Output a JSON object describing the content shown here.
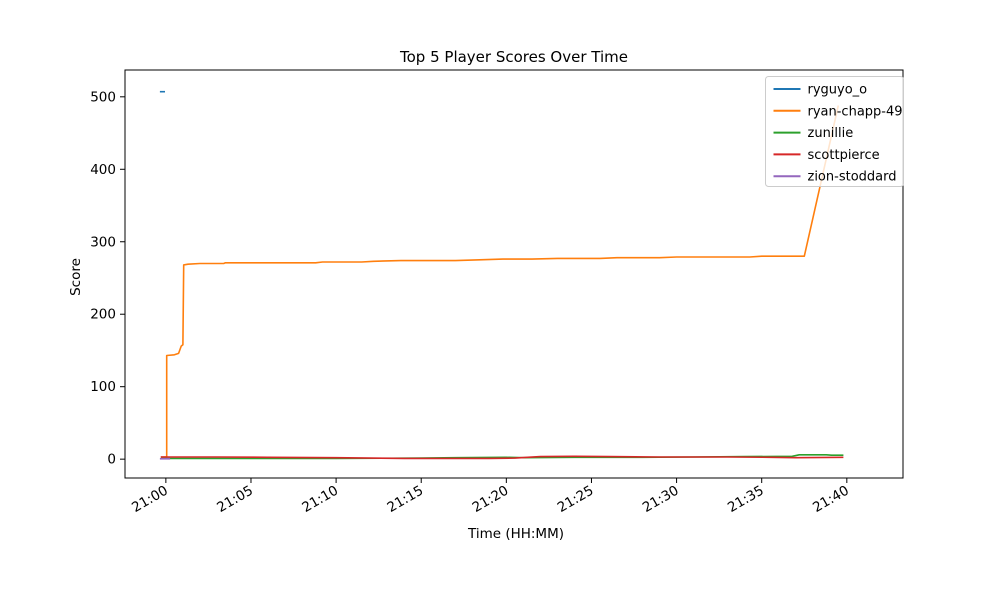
{
  "figure": {
    "background": "#ffffff"
  },
  "chart_data": {
    "type": "line",
    "title": "Top 5 Player Scores Over Time",
    "xlabel": "Time (HH:MM)",
    "ylabel": "Score",
    "grid": false,
    "legend_position": "upper right",
    "legend_border_color": "#cccccc",
    "x_unit": "minutes after 21:00",
    "xlim_minutes": [
      -2.4,
      43.3
    ],
    "ylim": [
      -26,
      537
    ],
    "yticks": [
      0,
      100,
      200,
      300,
      400,
      500
    ],
    "xticks": [
      {
        "minutes": 0,
        "label": "21:00"
      },
      {
        "minutes": 5,
        "label": "21:05"
      },
      {
        "minutes": 10,
        "label": "21:10"
      },
      {
        "minutes": 15,
        "label": "21:15"
      },
      {
        "minutes": 20,
        "label": "21:20"
      },
      {
        "minutes": 25,
        "label": "21:25"
      },
      {
        "minutes": 30,
        "label": "21:30"
      },
      {
        "minutes": 35,
        "label": "21:35"
      },
      {
        "minutes": 40,
        "label": "21:40"
      }
    ],
    "series": [
      {
        "name": "ryguyo_o",
        "color": "#1f77b4",
        "points": [
          [
            -0.35,
            507
          ],
          [
            -0.05,
            507
          ]
        ]
      },
      {
        "name": "ryan-chapp-49",
        "color": "#ff7f0e",
        "points": [
          [
            -0.3,
            3
          ],
          [
            0.05,
            3
          ],
          [
            0.05,
            143
          ],
          [
            0.5,
            144
          ],
          [
            0.75,
            146
          ],
          [
            0.9,
            156
          ],
          [
            1.0,
            158
          ],
          [
            1.05,
            268
          ],
          [
            1.3,
            269
          ],
          [
            2.0,
            270
          ],
          [
            3.4,
            270
          ],
          [
            3.5,
            271
          ],
          [
            8.8,
            271
          ],
          [
            9.2,
            272
          ],
          [
            11.5,
            272
          ],
          [
            12.2,
            273
          ],
          [
            13.8,
            274
          ],
          [
            17.0,
            274
          ],
          [
            18.2,
            275
          ],
          [
            19.8,
            276
          ],
          [
            21.5,
            276
          ],
          [
            23.0,
            277
          ],
          [
            25.5,
            277
          ],
          [
            26.5,
            278
          ],
          [
            29.0,
            278
          ],
          [
            30.0,
            279
          ],
          [
            34.3,
            279
          ],
          [
            35.0,
            280
          ],
          [
            37.5,
            280
          ],
          [
            39.5,
            488
          ]
        ]
      },
      {
        "name": "zunillie",
        "color": "#2ca02c",
        "points": [
          [
            -0.3,
            1
          ],
          [
            4.0,
            1
          ],
          [
            10.0,
            1
          ],
          [
            15.0,
            1.5
          ],
          [
            17.0,
            2
          ],
          [
            20.0,
            2.5
          ],
          [
            21.0,
            2
          ],
          [
            24.0,
            2.5
          ],
          [
            28.0,
            2.5
          ],
          [
            31.0,
            3
          ],
          [
            34.0,
            3.5
          ],
          [
            36.8,
            4
          ],
          [
            37.2,
            6
          ],
          [
            38.8,
            6
          ],
          [
            39.1,
            5.5
          ],
          [
            39.8,
            5.5
          ]
        ]
      },
      {
        "name": "scottpierce",
        "color": "#d62728",
        "points": [
          [
            -0.3,
            3
          ],
          [
            3.0,
            3
          ],
          [
            6.0,
            2.5
          ],
          [
            10.0,
            2
          ],
          [
            14.0,
            1
          ],
          [
            19.0,
            1
          ],
          [
            20.5,
            1.5
          ],
          [
            22.0,
            3.5
          ],
          [
            24.0,
            4
          ],
          [
            26.0,
            3.5
          ],
          [
            29.0,
            3
          ],
          [
            33.0,
            3
          ],
          [
            35.5,
            2.5
          ],
          [
            37.0,
            2
          ],
          [
            39.8,
            2.5
          ]
        ]
      },
      {
        "name": "zion-stoddard",
        "color": "#9467bd",
        "points": [
          [
            -0.35,
            0.5
          ],
          [
            0.25,
            0.5
          ]
        ]
      }
    ]
  }
}
